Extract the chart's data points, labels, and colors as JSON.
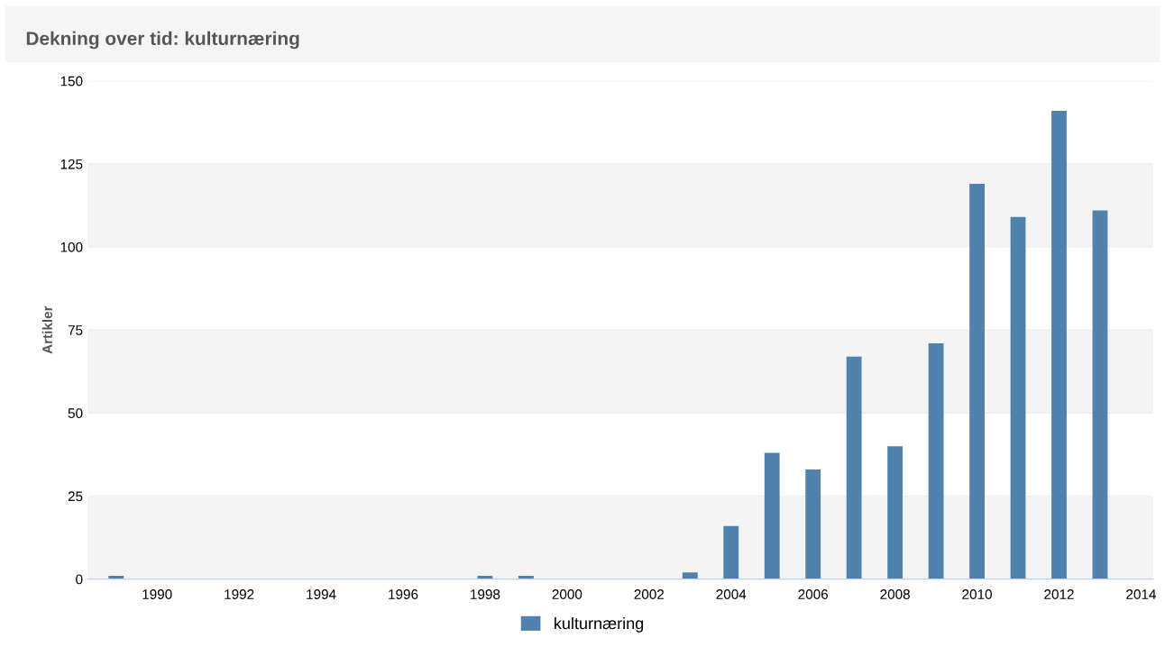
{
  "chart_data": {
    "type": "bar",
    "title": "Dekning over tid: kulturnæring",
    "ylabel": "Artikler",
    "x": [
      1989,
      1998,
      1999,
      2003,
      2004,
      2005,
      2006,
      2007,
      2008,
      2009,
      2010,
      2011,
      2012,
      2013
    ],
    "series": [
      {
        "name": "kulturnæring",
        "color": "#5082ad",
        "values": [
          1,
          1,
          1,
          2,
          16,
          38,
          33,
          67,
          40,
          71,
          119,
          109,
          141,
          111
        ]
      }
    ],
    "xlim": [
      1988.3,
      2014.3
    ],
    "xticks": [
      1990,
      1992,
      1994,
      1996,
      1998,
      2000,
      2002,
      2004,
      2006,
      2008,
      2010,
      2012,
      2014
    ],
    "ylim": [
      0,
      150
    ],
    "yticks": [
      0,
      25,
      50,
      75,
      100,
      125,
      150
    ],
    "grid": "y",
    "legend": "bottom"
  }
}
